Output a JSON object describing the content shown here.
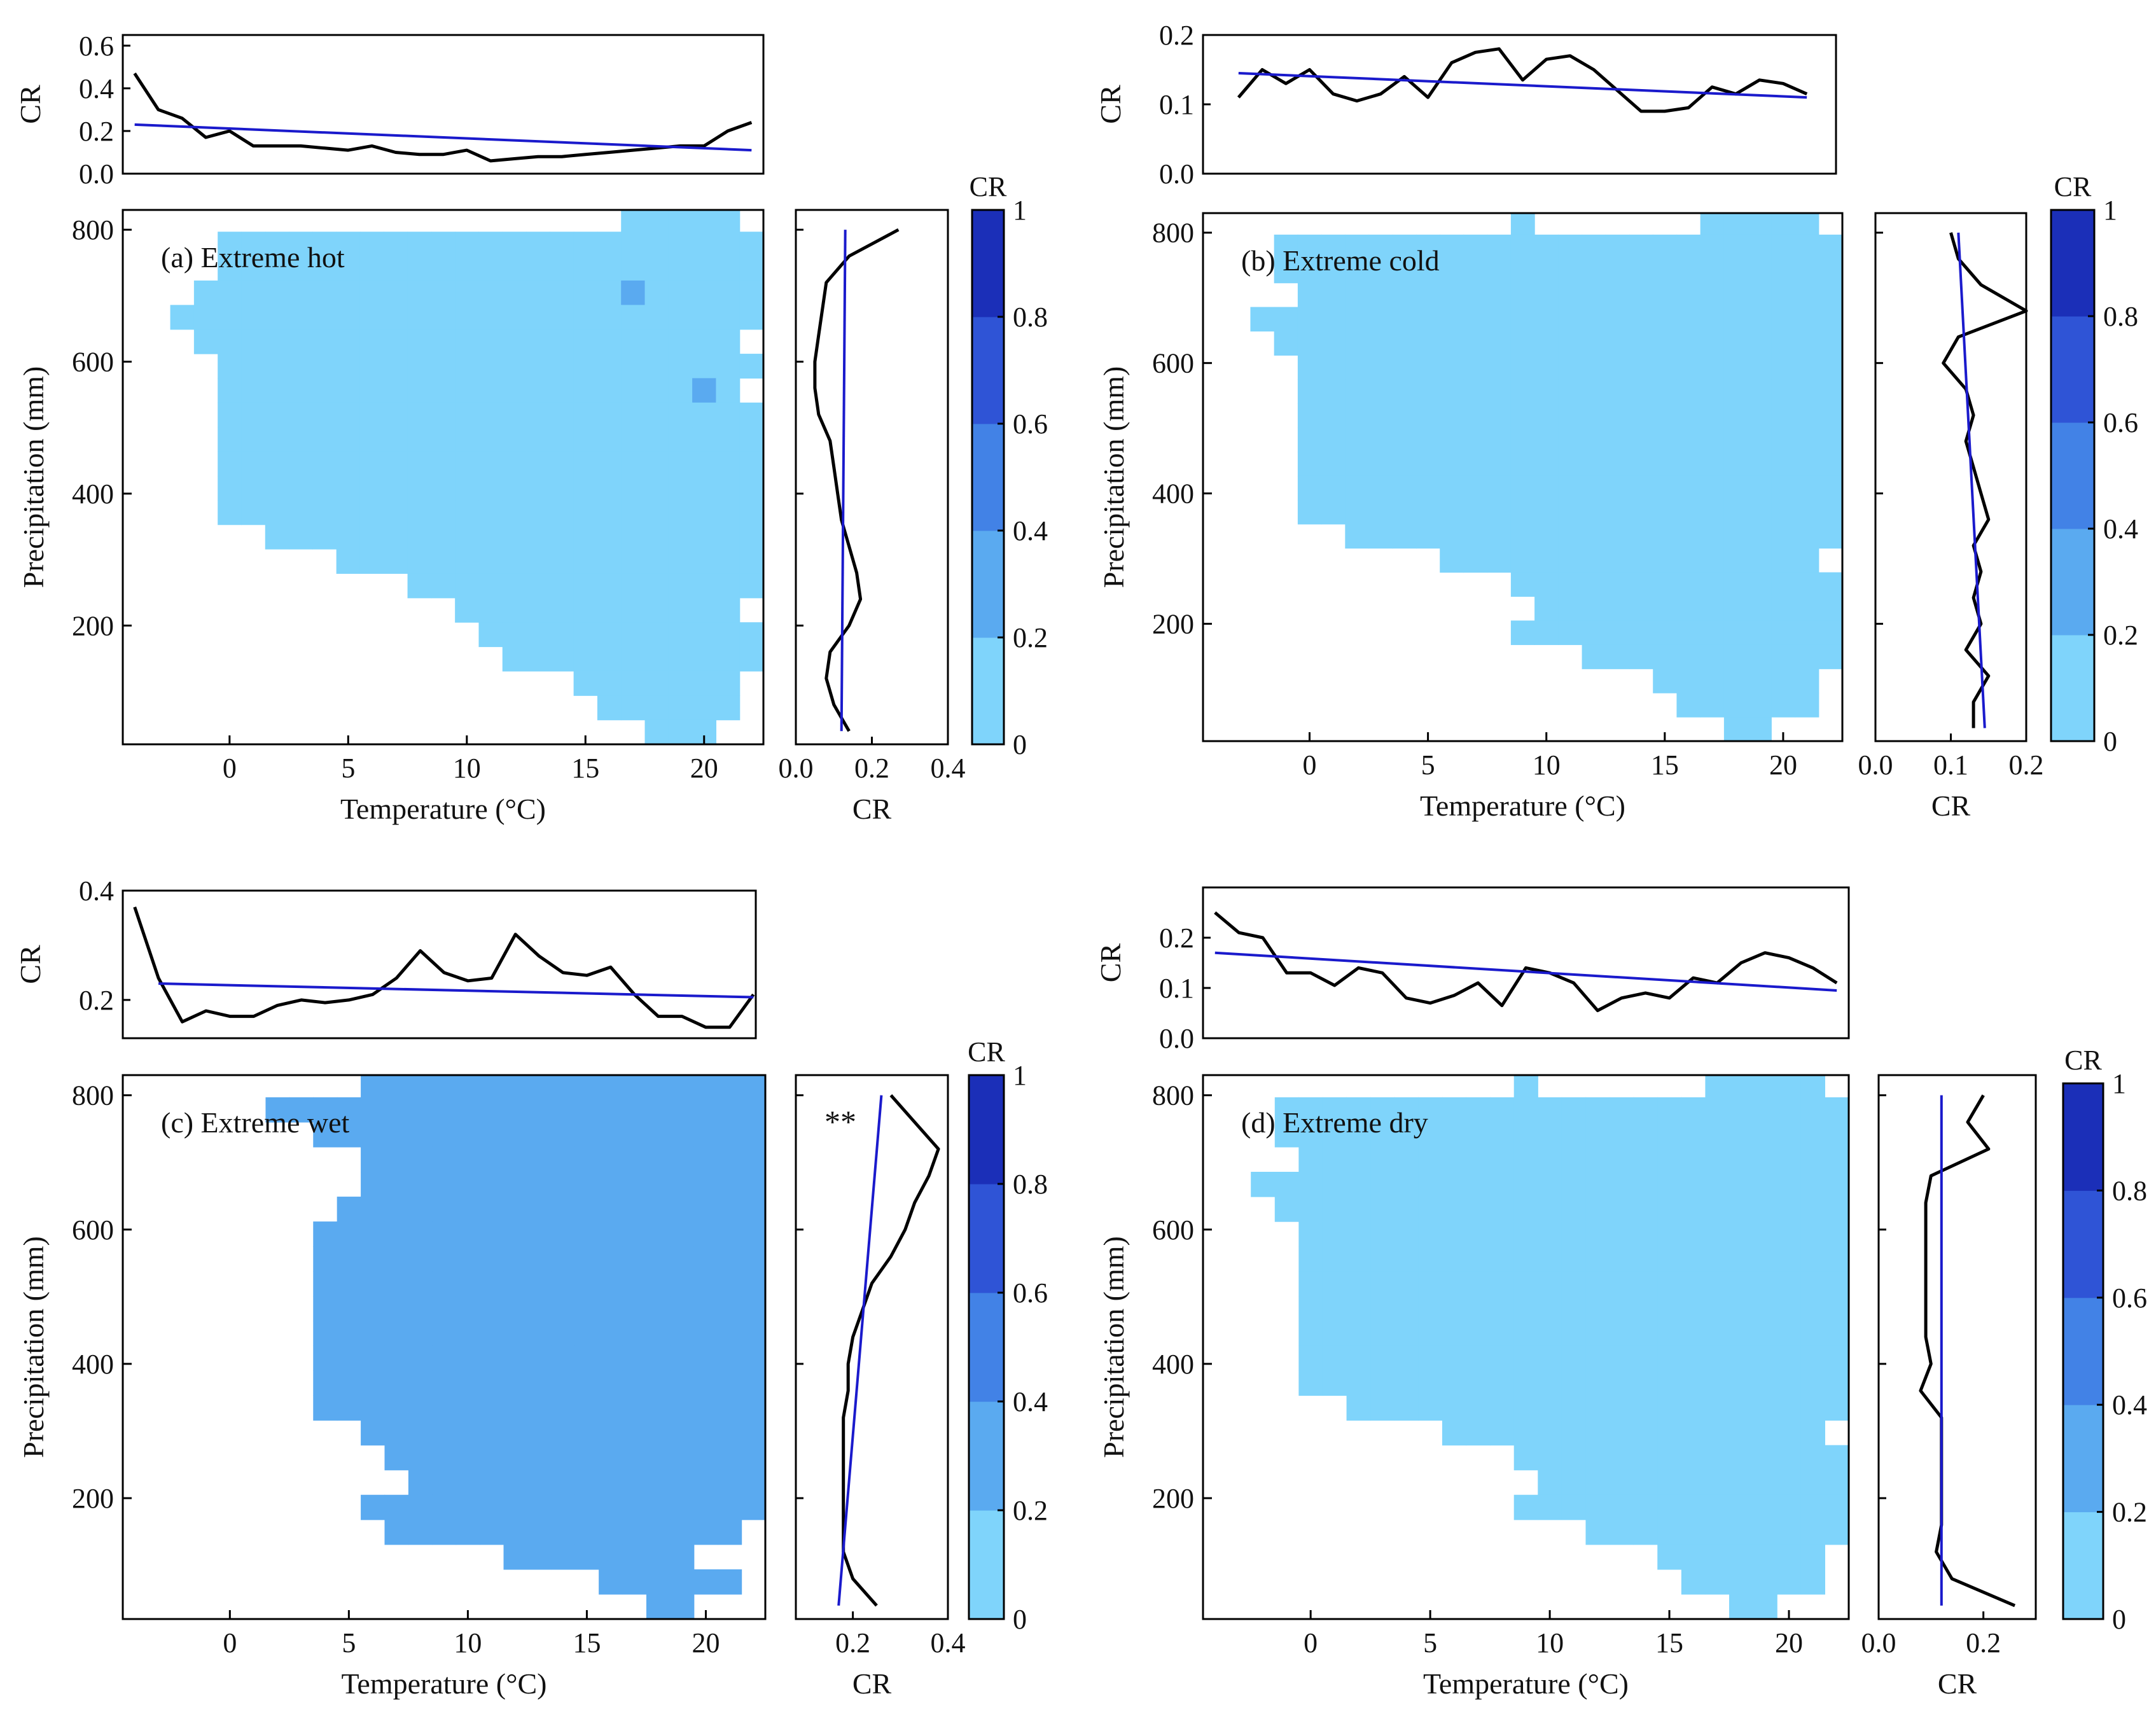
{
  "figure": {
    "panels": [
      {
        "id": "a",
        "label": "(a) Extreme hot",
        "xlabel": "Temperature (°C)",
        "ylabel": "Precipitation (mm)",
        "top": {
          "ylabel": "CR",
          "yticks": [
            "0.0",
            "0.2",
            "0.4",
            "0.6"
          ],
          "ylim": [
            0.0,
            0.65
          ]
        },
        "side": {
          "xlabel": "CR",
          "xticks": [
            "0.0",
            "0.2",
            "0.4"
          ],
          "xlim": [
            0.0,
            0.4
          ]
        },
        "colorbar": {
          "title": "CR",
          "ticks": [
            "0",
            "0.2",
            "0.4",
            "0.6",
            "0.8",
            "1"
          ]
        },
        "xticks": [
          "0",
          "5",
          "10",
          "15",
          "20"
        ],
        "yticks": [
          "200",
          "400",
          "600",
          "800"
        ],
        "annotation": ""
      },
      {
        "id": "b",
        "label": "(b) Extreme cold",
        "xlabel": "Temperature (°C)",
        "ylabel": "Precipitation (mm)",
        "top": {
          "ylabel": "CR",
          "yticks": [
            "0.0",
            "0.1",
            "0.2"
          ],
          "ylim": [
            0.0,
            0.2
          ]
        },
        "side": {
          "xlabel": "CR",
          "xticks": [
            "0.0",
            "0.1",
            "0.2"
          ],
          "xlim": [
            0.0,
            0.2
          ]
        },
        "colorbar": {
          "title": "CR",
          "ticks": [
            "0",
            "0.2",
            "0.4",
            "0.6",
            "0.8",
            "1"
          ]
        },
        "xticks": [
          "0",
          "5",
          "10",
          "15",
          "20"
        ],
        "yticks": [
          "200",
          "400",
          "600",
          "800"
        ],
        "annotation": ""
      },
      {
        "id": "c",
        "label": "(c) Extreme wet",
        "xlabel": "Temperature (°C)",
        "ylabel": "Precipitation (mm)",
        "top": {
          "ylabel": "CR",
          "yticks": [
            "0.2",
            "0.4"
          ],
          "ylim": [
            0.13,
            0.4
          ]
        },
        "side": {
          "xlabel": "CR",
          "xticks": [
            "0.2",
            "0.4"
          ],
          "xlim": [
            0.08,
            0.4
          ]
        },
        "colorbar": {
          "title": "CR",
          "ticks": [
            "0",
            "0.2",
            "0.4",
            "0.6",
            "0.8",
            "1"
          ]
        },
        "xticks": [
          "0",
          "5",
          "10",
          "15",
          "20"
        ],
        "yticks": [
          "200",
          "400",
          "600",
          "800"
        ],
        "annotation": "**"
      },
      {
        "id": "d",
        "label": "(d) Extreme dry",
        "xlabel": "Temperature (°C)",
        "ylabel": "Precipitation (mm)",
        "top": {
          "ylabel": "CR",
          "yticks": [
            "0.0",
            "0.1",
            "0.2"
          ],
          "ylim": [
            0.0,
            0.3
          ]
        },
        "side": {
          "xlabel": "CR",
          "xticks": [
            "0.0",
            "0.2"
          ],
          "xlim": [
            0.0,
            0.3
          ]
        },
        "colorbar": {
          "title": "CR",
          "ticks": [
            "0",
            "0.2",
            "0.4",
            "0.6",
            "0.8",
            "1"
          ]
        },
        "xticks": [
          "0",
          "5",
          "10",
          "15",
          "20"
        ],
        "yticks": [
          "200",
          "400",
          "600",
          "800"
        ],
        "annotation": ""
      }
    ]
  },
  "colors": {
    "bins": [
      "#7fd4fb",
      "#5aaaf0",
      "#4282e6",
      "#2f54d6",
      "#1b2fb8"
    ],
    "bin_edges": [
      0,
      0.2,
      0.4,
      0.6,
      0.8,
      1.0
    ],
    "curve": "#000000",
    "trend": "#1a1acc"
  },
  "chart_data": [
    {
      "panel": "a",
      "type": "heatmap",
      "title": "(a) Extreme hot",
      "xlabel": "Temperature (°C)",
      "ylabel": "Precipitation (mm)",
      "xlim": [
        -4.5,
        22.5
      ],
      "ylim": [
        20,
        830
      ],
      "cell_size": {
        "temperature": 1,
        "precipitation": 37
      },
      "temperature_start": -4.5,
      "precipitation_start": 20,
      "colorbar": {
        "label": "CR",
        "range": [
          0,
          1
        ],
        "ticks": [
          0,
          0.2,
          0.4,
          0.6,
          0.8,
          1
        ]
      },
      "grid_cr": [
        ".....................00000.....",
        "....00000000000000000000000000.",
        "....000000000000000000000000...",
        "...00000000000000000010000000..",
        "..00000000000000000000000000...",
        "...00000000000000000000000.....",
        "....00000000000000000000000....",
        "....0000000000000000000010.....",
        "....000000000000000000000000...",
        "....000000000000000000000000...",
        "....000000000000000000000000...",
        "....000000000000000000000000...",
        "....000000000000000000000000...",
        "......0000000000000000000000...",
        ".........00000000000000000000..",
        "............0000000000000000...",
        "..............000000000000.....",
        "...............0000000000000...",
        "................00000000000....",
        "...................0000000.....",
        "....................000000.....",
        "......................000......"
      ],
      "top_profile": {
        "x": [
          -4,
          -3,
          -2,
          -1,
          0,
          1,
          2,
          3,
          4,
          5,
          6,
          7,
          8,
          9,
          10,
          11,
          12,
          13,
          14,
          15,
          16,
          17,
          18,
          19,
          20,
          21,
          22
        ],
        "cr": [
          0.47,
          0.3,
          0.26,
          0.17,
          0.2,
          0.13,
          0.13,
          0.13,
          0.12,
          0.11,
          0.13,
          0.1,
          0.09,
          0.09,
          0.11,
          0.06,
          0.07,
          0.08,
          0.08,
          0.09,
          0.1,
          0.11,
          0.12,
          0.13,
          0.13,
          0.2,
          0.24
        ],
        "trend": {
          "x": [
            -4,
            22
          ],
          "cr": [
            0.23,
            0.11
          ]
        }
      },
      "side_profile": {
        "precipitation": [
          800,
          760,
          720,
          680,
          640,
          600,
          560,
          520,
          480,
          440,
          400,
          360,
          320,
          280,
          240,
          200,
          160,
          120,
          80,
          40
        ],
        "cr": [
          0.27,
          0.14,
          0.08,
          0.07,
          0.06,
          0.05,
          0.05,
          0.06,
          0.09,
          0.1,
          0.11,
          0.12,
          0.14,
          0.16,
          0.17,
          0.14,
          0.09,
          0.08,
          0.1,
          0.14
        ],
        "trend": {
          "precipitation": [
            800,
            40
          ],
          "cr": [
            0.13,
            0.12
          ]
        }
      },
      "annotation": ""
    },
    {
      "panel": "b",
      "type": "heatmap",
      "title": "(b) Extreme cold",
      "xlabel": "Temperature (°C)",
      "ylabel": "Precipitation (mm)",
      "xlim": [
        -4.5,
        22.5
      ],
      "ylim": [
        20,
        830
      ],
      "cell_size": {
        "temperature": 1,
        "precipitation": 37
      },
      "temperature_start": -4.5,
      "precipitation_start": 20,
      "colorbar": {
        "label": "CR",
        "range": [
          0,
          1
        ],
        "ticks": [
          0,
          0.2,
          0.4,
          0.6,
          0.8,
          1
        ]
      },
      "grid_cr": [
        ".............0.......00000.....",
        "...0000000000000000000000000...",
        "...0000000000000000000000000...",
        "....0000000000000000000000000..",
        "..0000000000000000000000000000.",
        "...00000000000000000000000000..",
        "....000000000000000000000000...",
        "....000000000000000000000000...",
        "....000000000000000000000000...",
        "....000000000000000000000000...",
        "....000000000000000000000000...",
        "....000000000000000000000000...",
        "....000000000000000000000000...",
        "......0000000000000000000000...",
        "..........0000000000000000.....",
        ".............00000000000000....",
        "..............0000000000000....",
        ".............00000000000000....",
        "................00000000000....",
        "...................0000000.....",
        "....................000000.....",
        "......................00......."
      ],
      "top_profile": {
        "x": [
          -3,
          -2,
          -1,
          0,
          1,
          2,
          3,
          4,
          5,
          6,
          7,
          8,
          9,
          10,
          11,
          12,
          13,
          14,
          15,
          16,
          17,
          18,
          19,
          20,
          21
        ],
        "cr": [
          0.11,
          0.15,
          0.13,
          0.15,
          0.115,
          0.105,
          0.115,
          0.14,
          0.11,
          0.16,
          0.175,
          0.18,
          0.135,
          0.165,
          0.17,
          0.15,
          0.12,
          0.09,
          0.09,
          0.095,
          0.125,
          0.115,
          0.135,
          0.13,
          0.115
        ],
        "trend": {
          "x": [
            -3,
            21
          ],
          "cr": [
            0.145,
            0.11
          ]
        }
      },
      "side_profile": {
        "precipitation": [
          800,
          760,
          720,
          680,
          640,
          600,
          560,
          520,
          480,
          440,
          400,
          360,
          320,
          280,
          240,
          200,
          160,
          120,
          80,
          40
        ],
        "cr": [
          0.1,
          0.11,
          0.14,
          0.2,
          0.11,
          0.09,
          0.12,
          0.13,
          0.12,
          0.13,
          0.14,
          0.15,
          0.13,
          0.14,
          0.13,
          0.14,
          0.12,
          0.15,
          0.13,
          0.13
        ],
        "trend": {
          "precipitation": [
            800,
            40
          ],
          "cr": [
            0.11,
            0.145
          ]
        }
      },
      "annotation": ""
    },
    {
      "panel": "c",
      "type": "heatmap",
      "title": "(c) Extreme wet",
      "xlabel": "Temperature (°C)",
      "ylabel": "Precipitation (mm)",
      "xlim": [
        -4.5,
        22.5
      ],
      "ylim": [
        20,
        830
      ],
      "cell_size": {
        "temperature": 1,
        "precipitation": 37
      },
      "temperature_start": -4.5,
      "precipitation_start": 20,
      "colorbar": {
        "label": "CR",
        "range": [
          0,
          1
        ],
        "ticks": [
          0,
          0.2,
          0.4,
          0.6,
          0.8,
          1
        ]
      },
      "grid_cr": [
        "..........111111111111111111...",
        "......111111111111111111111111.",
        "........1111111111111111111111.",
        "..........11111111111111111111.",
        "..........11111111111111111111.",
        ".........1111111111111111111111",
        "........1111111111111111111111.",
        "........1111111111111111111111.",
        "........1111111111111111111111.",
        "........1111111111111111111111.",
        "........1111111111111111111111.",
        "........1111111111111111111111.",
        "........1111111111111111111111.",
        "........1111111111111111111111.",
        "..........1111111111111111111..",
        "...........111111111111111111..",
        "............1111111111111111...",
        "..........11111111111111111....",
        "...........111111111111111.....",
        "................11111111.......",
        "....................111111.....",
        "......................11......."
      ],
      "top_profile": {
        "x": [
          -4,
          -3,
          -2,
          -1,
          0,
          1,
          2,
          3,
          4,
          5,
          6,
          7,
          8,
          9,
          10,
          11,
          12,
          13,
          14,
          15,
          16,
          17,
          18,
          19,
          20,
          21,
          22
        ],
        "cr": [
          0.37,
          0.24,
          0.16,
          0.18,
          0.17,
          0.17,
          0.19,
          0.2,
          0.195,
          0.2,
          0.21,
          0.24,
          0.29,
          0.25,
          0.235,
          0.24,
          0.32,
          0.28,
          0.25,
          0.245,
          0.26,
          0.21,
          0.17,
          0.17,
          0.15,
          0.15,
          0.21
        ],
        "trend": {
          "x": [
            -3,
            22
          ],
          "cr": [
            0.23,
            0.205
          ]
        }
      },
      "side_profile": {
        "precipitation": [
          800,
          760,
          720,
          680,
          640,
          600,
          560,
          520,
          480,
          440,
          400,
          360,
          320,
          280,
          240,
          200,
          160,
          120,
          80,
          40
        ],
        "cr": [
          0.28,
          0.33,
          0.38,
          0.36,
          0.33,
          0.31,
          0.28,
          0.24,
          0.22,
          0.2,
          0.19,
          0.19,
          0.18,
          0.18,
          0.18,
          0.18,
          0.18,
          0.18,
          0.2,
          0.25
        ],
        "trend": {
          "precipitation": [
            800,
            40
          ],
          "cr": [
            0.26,
            0.17
          ]
        }
      },
      "annotation": "**"
    },
    {
      "panel": "d",
      "type": "heatmap",
      "title": "(d) Extreme dry",
      "xlabel": "Temperature (°C)",
      "ylabel": "Precipitation (mm)",
      "xlim": [
        -4.5,
        22.5
      ],
      "ylim": [
        20,
        830
      ],
      "cell_size": {
        "temperature": 1,
        "precipitation": 37
      },
      "temperature_start": -4.5,
      "precipitation_start": 20,
      "colorbar": {
        "label": "CR",
        "range": [
          0,
          1
        ],
        "ticks": [
          0,
          0.2,
          0.4,
          0.6,
          0.8,
          1
        ]
      },
      "grid_cr": [
        ".............0.......00000.....",
        "...0000000000000000000000000...",
        "...0000000000000000000000000...",
        "....0000000000000000000000000..",
        "..0000000000000000000000000000.",
        "...00000000000000000000000000..",
        "....000000000000000000000000...",
        "....000000000000000000000000...",
        "....000000000000000000000000...",
        "....000000000000000000000000...",
        "....000000000000000000000000...",
        "....000000000000000000000000...",
        "....000000000000000000000000...",
        "......0000000000000000000000...",
        "..........0000000000000000.....",
        ".............00000000000000....",
        "..............0000000000000....",
        ".............00000000000000....",
        "................00000000000....",
        "...................0000000.....",
        "....................000000.....",
        "......................00......."
      ],
      "top_profile": {
        "x": [
          -4,
          -3,
          -2,
          -1,
          0,
          1,
          2,
          3,
          4,
          5,
          6,
          7,
          8,
          9,
          10,
          11,
          12,
          13,
          14,
          15,
          16,
          17,
          18,
          19,
          20,
          21,
          22
        ],
        "cr": [
          0.25,
          0.21,
          0.2,
          0.13,
          0.13,
          0.105,
          0.14,
          0.13,
          0.08,
          0.07,
          0.085,
          0.11,
          0.065,
          0.14,
          0.13,
          0.11,
          0.055,
          0.08,
          0.09,
          0.08,
          0.12,
          0.11,
          0.15,
          0.17,
          0.16,
          0.14,
          0.11
        ],
        "trend": {
          "x": [
            -4,
            22
          ],
          "cr": [
            0.17,
            0.095
          ]
        }
      },
      "side_profile": {
        "precipitation": [
          800,
          760,
          720,
          680,
          640,
          600,
          560,
          520,
          480,
          440,
          400,
          360,
          320,
          280,
          240,
          200,
          160,
          120,
          80,
          40
        ],
        "cr": [
          0.2,
          0.17,
          0.21,
          0.1,
          0.09,
          0.09,
          0.09,
          0.09,
          0.09,
          0.09,
          0.1,
          0.08,
          0.12,
          0.12,
          0.12,
          0.12,
          0.12,
          0.11,
          0.14,
          0.26
        ],
        "trend": {
          "precipitation": [
            800,
            40
          ],
          "cr": [
            0.12,
            0.12
          ]
        }
      },
      "annotation": ""
    }
  ]
}
